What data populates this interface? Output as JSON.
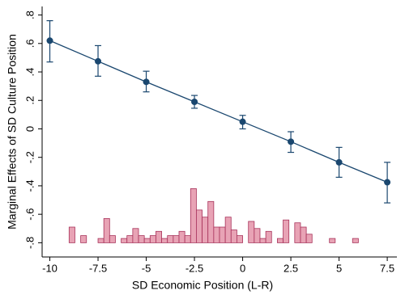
{
  "chart_data": {
    "type": "marginal-effects",
    "y_label": "Marginal Effects of SD Culture Position",
    "x_label": "SD Economic Position (L-R)",
    "xlim": [
      -10.4,
      8.0
    ],
    "ylim": [
      -0.9,
      0.86
    ],
    "xticks": [
      -10,
      -7.5,
      -5,
      -2.5,
      0,
      2.5,
      5,
      7.5
    ],
    "yticks": [
      {
        "value": 0.8,
        "label": ".8"
      },
      {
        "value": 0.6,
        "label": ".6"
      },
      {
        "value": 0.4,
        "label": ".4"
      },
      {
        "value": 0.2,
        "label": ".2"
      },
      0,
      {
        "value": -0.2,
        "label": "-.2"
      },
      {
        "value": -0.4,
        "label": "-.4"
      },
      {
        "value": -0.6,
        "label": "-.6"
      },
      {
        "value": -0.8,
        "label": "-.8"
      }
    ],
    "x": [
      -10,
      -7.5,
      -5,
      -2.5,
      0,
      2.5,
      5,
      7.5
    ],
    "series": [
      {
        "color": "#1a476f",
        "values": [
          0.62,
          0.475,
          0.33,
          0.19,
          0.05,
          -0.09,
          -0.235,
          -0.375
        ],
        "lower": [
          0.47,
          0.37,
          0.26,
          0.145,
          0.0,
          -0.165,
          -0.34,
          -0.52
        ],
        "upper": [
          0.76,
          0.585,
          0.405,
          0.235,
          0.095,
          -0.02,
          -0.13,
          -0.235
        ]
      }
    ],
    "histogram": {
      "color": "#e8a3b5",
      "edge_color": "#a8325a",
      "base": -0.8,
      "bins": [
        -9,
        -8.7,
        -8.4,
        -8.1,
        -7.8,
        -7.5,
        -7.2,
        -6.9,
        -6.6,
        -6.3,
        -6,
        -5.7,
        -5.4,
        -5.1,
        -4.8,
        -4.5,
        -4.2,
        -3.9,
        -3.6,
        -3.3,
        -3,
        -2.7,
        -2.4,
        -2.1,
        -1.8,
        -1.5,
        -1.2,
        -0.9,
        -0.6,
        -0.3,
        0,
        0.3,
        0.6,
        0.9,
        1.2,
        1.5,
        1.8,
        2.1,
        2.4,
        2.7,
        3,
        3.3,
        3.6,
        3.9,
        4.2,
        4.5,
        4.8,
        5.1,
        5.4,
        5.7,
        6
      ],
      "values": [
        0.11,
        0,
        0.05,
        0,
        0,
        0.03,
        0.17,
        0.05,
        0,
        0.03,
        0.05,
        0.1,
        0.05,
        0.03,
        0.05,
        0.08,
        0.03,
        0.05,
        0.05,
        0.08,
        0.05,
        0.38,
        0.23,
        0.18,
        0.29,
        0.11,
        0.11,
        0.18,
        0.09,
        0.05,
        0,
        0.15,
        0.1,
        0.03,
        0.08,
        0,
        0.03,
        0.16,
        0,
        0.14,
        0.11,
        0.06,
        0,
        0,
        0,
        0.03,
        0,
        0,
        0,
        0.03
      ]
    }
  }
}
